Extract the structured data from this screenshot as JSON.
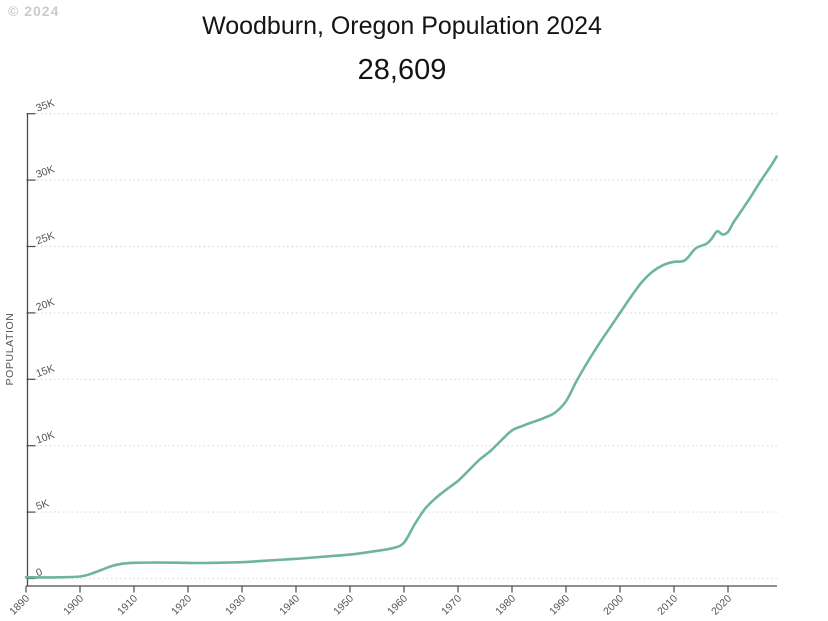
{
  "watermark": "© 2024",
  "header": {
    "title": "Woodburn, Oregon Population 2024",
    "subtitle": "28,609"
  },
  "chart_data": {
    "type": "line",
    "title": "Woodburn, Oregon Population 2024",
    "subtitle_current_value": "28,609",
    "xlabel": "",
    "ylabel": "POPULATION",
    "xlim": [
      1890,
      2029
    ],
    "ylim": [
      0,
      35000
    ],
    "grid": "horizontal-dotted",
    "legend": "none",
    "line_color": "#6eb59f",
    "axis_color": "#4c4c4c",
    "label_color": "#555555",
    "grid_color": "#e2e2e2",
    "y_ticks": [
      {
        "value": 0,
        "label": "0"
      },
      {
        "value": 5000,
        "label": "5K"
      },
      {
        "value": 10000,
        "label": "10K"
      },
      {
        "value": 15000,
        "label": "15K"
      },
      {
        "value": 20000,
        "label": "20K"
      },
      {
        "value": 25000,
        "label": "25K"
      },
      {
        "value": 30000,
        "label": "30K"
      },
      {
        "value": 35000,
        "label": "35K"
      }
    ],
    "x_ticks": [
      {
        "value": 1890,
        "label": "1890"
      },
      {
        "value": 1900,
        "label": "1900"
      },
      {
        "value": 1910,
        "label": "1910"
      },
      {
        "value": 1920,
        "label": "1920"
      },
      {
        "value": 1930,
        "label": "1930"
      },
      {
        "value": 1940,
        "label": "1940"
      },
      {
        "value": 1950,
        "label": "1950"
      },
      {
        "value": 1960,
        "label": "1960"
      },
      {
        "value": 1970,
        "label": "1970"
      },
      {
        "value": 1980,
        "label": "1980"
      },
      {
        "value": 1990,
        "label": "1990"
      },
      {
        "value": 2000,
        "label": "2000"
      },
      {
        "value": 2010,
        "label": "2010"
      },
      {
        "value": 2020,
        "label": "2020"
      }
    ],
    "series": [
      {
        "name": "Population",
        "points": [
          [
            1890,
            100
          ],
          [
            1893,
            80
          ],
          [
            1896,
            90
          ],
          [
            1900,
            150
          ],
          [
            1902,
            350
          ],
          [
            1904,
            650
          ],
          [
            1906,
            950
          ],
          [
            1908,
            1120
          ],
          [
            1910,
            1180
          ],
          [
            1914,
            1200
          ],
          [
            1918,
            1190
          ],
          [
            1922,
            1170
          ],
          [
            1926,
            1190
          ],
          [
            1930,
            1230
          ],
          [
            1934,
            1330
          ],
          [
            1938,
            1430
          ],
          [
            1942,
            1540
          ],
          [
            1946,
            1670
          ],
          [
            1950,
            1800
          ],
          [
            1954,
            2020
          ],
          [
            1958,
            2300
          ],
          [
            1960,
            2700
          ],
          [
            1962,
            4100
          ],
          [
            1964,
            5300
          ],
          [
            1966,
            6100
          ],
          [
            1968,
            6750
          ],
          [
            1970,
            7350
          ],
          [
            1972,
            8150
          ],
          [
            1974,
            8950
          ],
          [
            1976,
            9600
          ],
          [
            1978,
            10400
          ],
          [
            1980,
            11150
          ],
          [
            1982,
            11500
          ],
          [
            1984,
            11800
          ],
          [
            1986,
            12100
          ],
          [
            1988,
            12500
          ],
          [
            1990,
            13350
          ],
          [
            1992,
            14900
          ],
          [
            1994,
            16300
          ],
          [
            1996,
            17600
          ],
          [
            1998,
            18800
          ],
          [
            2000,
            20000
          ],
          [
            2002,
            21200
          ],
          [
            2004,
            22300
          ],
          [
            2006,
            23100
          ],
          [
            2008,
            23600
          ],
          [
            2010,
            23850
          ],
          [
            2012,
            23950
          ],
          [
            2014,
            24850
          ],
          [
            2016,
            25200
          ],
          [
            2017,
            25600
          ],
          [
            2018,
            26150
          ],
          [
            2019,
            25900
          ],
          [
            2020,
            26100
          ],
          [
            2021,
            26800
          ],
          [
            2022,
            27400
          ],
          [
            2024,
            28609
          ],
          [
            2026,
            29900
          ],
          [
            2028,
            31100
          ],
          [
            2029,
            31777
          ]
        ]
      }
    ]
  }
}
